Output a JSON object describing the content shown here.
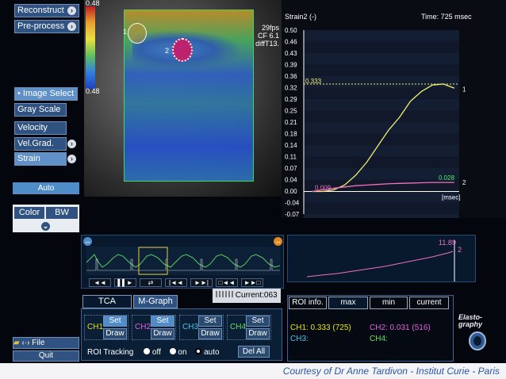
{
  "left_menu": {
    "reconstruct": "Reconstruct",
    "preprocess": "Pre-process",
    "image_select": "Image Select",
    "gray_scale": "Gray Scale",
    "velocity": "Velocity",
    "vel_grad": "Vel.Grad.",
    "strain": "Strain",
    "auto": "Auto",
    "color_tab": "Color",
    "bw_tab": "BW",
    "file": "File",
    "quit": "Quit"
  },
  "image": {
    "scale_top": "0.48",
    "scale_mid": "0.48",
    "fps": "29fps",
    "cf": "CF 6.1",
    "diff": "diffT13.",
    "roi1": "1",
    "roi2": "2"
  },
  "strain_graph": {
    "title": "Strain2 (-)",
    "time": "Time: 725 msec",
    "y_ticks": [
      "0.50",
      "0.46",
      "0.43",
      "0.39",
      "0.36",
      "0.32",
      "0.29",
      "0.25",
      "0.21",
      "0.18",
      "0.14",
      "0.11",
      "0.07",
      "0.04",
      "0.00",
      "-0.04",
      "-0.07"
    ],
    "peak_label": "0.333",
    "end_label_1": "1",
    "end_value_2": "0.028",
    "end_label_2": "2",
    "start_label": "0.009",
    "x_unit": "[msec]"
  },
  "chart_data": {
    "type": "line",
    "title": "Strain2 (-)",
    "ylim": [
      -0.07,
      0.5
    ],
    "series": [
      {
        "name": "1",
        "values": [
          0.0,
          0.0,
          0.005,
          0.02,
          0.05,
          0.09,
          0.14,
          0.19,
          0.23,
          0.28,
          0.31,
          0.33,
          0.333,
          0.32
        ]
      },
      {
        "name": "2",
        "values": [
          0.0,
          0.005,
          0.01,
          0.014,
          0.018,
          0.02,
          0.022,
          0.024,
          0.025,
          0.026,
          0.027,
          0.028,
          0.028,
          0.028
        ]
      }
    ]
  },
  "mini_graph": {
    "value": "11.89",
    "label": "2"
  },
  "transport": {
    "buttons": [
      "◄◄",
      "▌▌►",
      "⇄",
      "|◄◄",
      "►►|",
      "□◄◄",
      "►►□"
    ],
    "current_label": "Current:063"
  },
  "tabs": {
    "tca": "TCA",
    "mgraph": "M-Graph"
  },
  "channels": [
    {
      "name": "CH1",
      "set": "Set",
      "draw": "Draw",
      "color": "#e8e400"
    },
    {
      "name": "CH2",
      "set": "Set",
      "draw": "Draw",
      "color": "#e060e0"
    },
    {
      "name": "CH3",
      "set": "Set",
      "draw": "Draw",
      "color": "#40c8f0"
    },
    {
      "name": "CH4",
      "set": "Set",
      "draw": "Draw",
      "color": "#60e060"
    }
  ],
  "roi_tracking": {
    "label": "ROI Tracking",
    "off": "off",
    "on": "on",
    "auto": "auto",
    "del_all": "Del All"
  },
  "info": {
    "tabs": [
      "ROI info.",
      "max",
      "min",
      "current"
    ],
    "ch1": "CH1: 0.333 (725)",
    "ch2": "CH2: 0.031 (516)",
    "ch3": "CH3:",
    "ch4": "CH4:"
  },
  "logo": {
    "line1": "Elasto-",
    "line2": "graphy"
  },
  "caption": "Courtesy of Dr Anne Tardivon - Institut Curie - Paris",
  "colors": {
    "curve1": "#f0ec70",
    "curve2": "#f070c0",
    "button_blue": "#4f8cc8",
    "panel_bg": "#08192e"
  }
}
